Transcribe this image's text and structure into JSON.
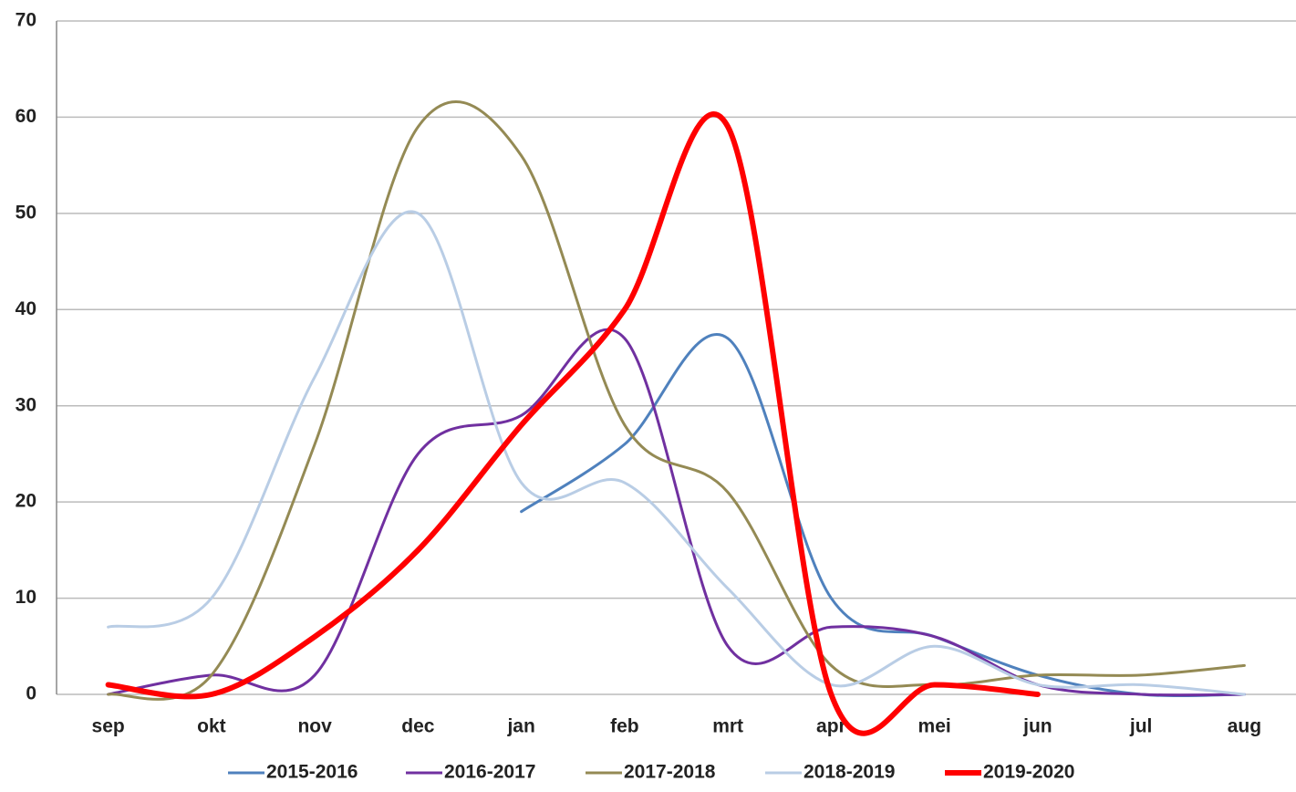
{
  "chart_data": {
    "type": "line",
    "categories": [
      "sep",
      "okt",
      "nov",
      "dec",
      "jan",
      "feb",
      "mrt",
      "apr",
      "mei",
      "jun",
      "jul",
      "aug"
    ],
    "series": [
      {
        "name": "2015-2016",
        "color": "#4f81bd",
        "width": 3,
        "values": [
          null,
          null,
          null,
          null,
          19,
          26,
          37,
          10,
          6,
          2,
          0,
          0
        ]
      },
      {
        "name": "2016-2017",
        "color": "#7030a0",
        "width": 3,
        "values": [
          0,
          2,
          2,
          25,
          29,
          37,
          5,
          7,
          6,
          1,
          0,
          0
        ]
      },
      {
        "name": "2017-2018",
        "color": "#948a54",
        "width": 3,
        "values": [
          0,
          2,
          26,
          59,
          56,
          28,
          21,
          3,
          1,
          2,
          2,
          3
        ]
      },
      {
        "name": "2018-2019",
        "color": "#b9cde5",
        "width": 3,
        "values": [
          7,
          10,
          33,
          50,
          22,
          22,
          11,
          1,
          5,
          1,
          1,
          0
        ]
      },
      {
        "name": "2019-2020",
        "color": "#ff0000",
        "width": 6,
        "values": [
          1,
          0,
          6,
          15,
          28,
          40,
          59,
          0,
          1,
          0,
          null,
          null
        ]
      }
    ],
    "ylim": [
      0,
      70
    ],
    "yticks": [
      0,
      10,
      20,
      30,
      40,
      50,
      60,
      70
    ],
    "grid": true,
    "legend": "bottom"
  }
}
